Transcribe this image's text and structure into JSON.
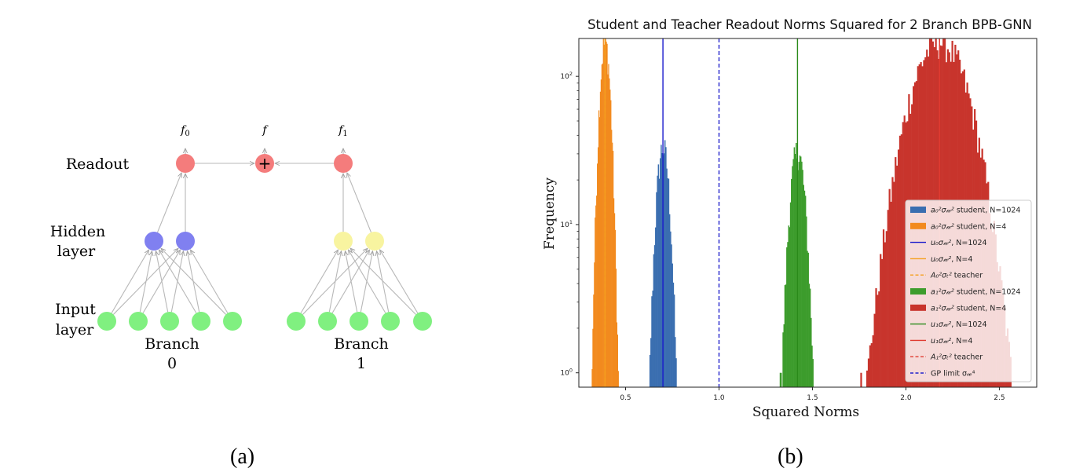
{
  "panel_labels": {
    "a": "(a)",
    "b": "(b)"
  },
  "diagram": {
    "row_labels": {
      "readout": "Readout",
      "hidden": [
        "Hidden",
        "layer"
      ],
      "input": [
        "Input",
        "layer"
      ]
    },
    "outputs": {
      "f0": "f",
      "f0_sub": "0",
      "f": "f",
      "f1": "f",
      "f1_sub": "1"
    },
    "sum_symbol": "+",
    "branches": [
      {
        "label": "Branch",
        "index": "0"
      },
      {
        "label": "Branch",
        "index": "1"
      }
    ],
    "colors": {
      "readout": "#f47c7c",
      "hidden0": "#8080f0",
      "hidden1": "#f8f4a0",
      "input": "#80f080",
      "edge": "#b8b8b8"
    }
  },
  "chart_data": {
    "type": "histogram",
    "title": "Student and Teacher Readout Norms Squared for 2 Branch BPB-GNN",
    "xlabel": "Squared Norms",
    "ylabel": "Frequency",
    "yscale": "log",
    "xlim": [
      0.25,
      2.7
    ],
    "ylim": [
      0.8,
      180
    ],
    "xticks": [
      0.5,
      1.0,
      1.5,
      2.0,
      2.5
    ],
    "xtick_labels": [
      "0.5",
      "1.0",
      "1.5",
      "2.0",
      "2.5"
    ],
    "yticks": [
      1,
      10,
      100
    ],
    "ytick_labels": [
      "10",
      "10",
      "10"
    ],
    "ytick_exponents": [
      "0",
      "1",
      "2"
    ],
    "histograms": [
      {
        "label": "student, N=1024",
        "math": "a₀²σ𝓌²",
        "color": "#3a6eb0",
        "mean": 0.7,
        "sd": 0.027,
        "peak": 33,
        "bin": 0.005
      },
      {
        "label": "student, N=4",
        "math": "a₀²σ𝓌²",
        "color": "#f28a1e",
        "mean": 0.39,
        "sd": 0.022,
        "peak": 170,
        "bin": 0.004
      },
      {
        "label": "student, N=1024",
        "math": "a₁²σ𝓌²",
        "color": "#3d9c2c",
        "mean": 1.42,
        "sd": 0.032,
        "peak": 31,
        "bin": 0.005
      },
      {
        "label": "student, N=4",
        "math": "a₁²σ𝓌²",
        "color": "#c8342c",
        "mean": 2.18,
        "sd": 0.12,
        "peak": 170,
        "bin": 0.008
      }
    ],
    "vlines": [
      {
        "label": ", N=1024",
        "math": "u₀σ𝓌²",
        "x": 0.7,
        "color": "#1a1acc",
        "style": "solid"
      },
      {
        "label": ", N=4",
        "math": "u₀σ𝓌²",
        "x": 0.39,
        "color": "#f5a020",
        "style": "solid"
      },
      {
        "label": " teacher",
        "math": "A₀²σₜ²",
        "x": 0.39,
        "color": "#f5a020",
        "style": "dashed"
      },
      {
        "label": ", N=1024",
        "math": "u₁σ𝓌²",
        "x": 1.42,
        "color": "#2a8a1a",
        "style": "solid"
      },
      {
        "label": ", N=4",
        "math": "u₁σ𝓌²",
        "x": 2.18,
        "color": "#e03a30",
        "style": "solid"
      },
      {
        "label": " teacher",
        "math": "A₁²σₜ²",
        "x": 2.18,
        "color": "#e03a30",
        "style": "dashed"
      },
      {
        "label": "GP limit ",
        "math_suffix": "σ𝓌⁴",
        "x": 1.0,
        "color": "#2222cc",
        "style": "dashed"
      }
    ],
    "legend": {
      "placement": "right",
      "entries": [
        {
          "kind": "patch",
          "color": "#3a6eb0",
          "math": "a₀²σ𝓌²",
          "text": " student, N=1024"
        },
        {
          "kind": "patch",
          "color": "#f28a1e",
          "math": "a₀²σ𝓌²",
          "text": " student, N=4"
        },
        {
          "kind": "line",
          "color": "#1a1acc",
          "dash": false,
          "math": "u₀σ𝓌²",
          "text": ", N=1024"
        },
        {
          "kind": "line",
          "color": "#f5a020",
          "dash": false,
          "math": "u₀σ𝓌²",
          "text": ", N=4"
        },
        {
          "kind": "line",
          "color": "#f5a020",
          "dash": true,
          "math": "A₀²σₜ²",
          "text": " teacher"
        },
        {
          "kind": "patch",
          "color": "#3d9c2c",
          "math": "a₁²σ𝓌²",
          "text": " student, N=1024"
        },
        {
          "kind": "patch",
          "color": "#c8342c",
          "math": "a₁²σ𝓌²",
          "text": " student, N=4"
        },
        {
          "kind": "line",
          "color": "#2a8a1a",
          "dash": false,
          "math": "u₁σ𝓌²",
          "text": ", N=1024"
        },
        {
          "kind": "line",
          "color": "#e03a30",
          "dash": false,
          "math": "u₁σ𝓌²",
          "text": ", N=4"
        },
        {
          "kind": "line",
          "color": "#e03a30",
          "dash": true,
          "math": "A₁²σₜ²",
          "text": " teacher"
        },
        {
          "kind": "line",
          "color": "#2222cc",
          "dash": true,
          "math": "",
          "text": "GP limit σ𝓌⁴"
        }
      ]
    }
  }
}
